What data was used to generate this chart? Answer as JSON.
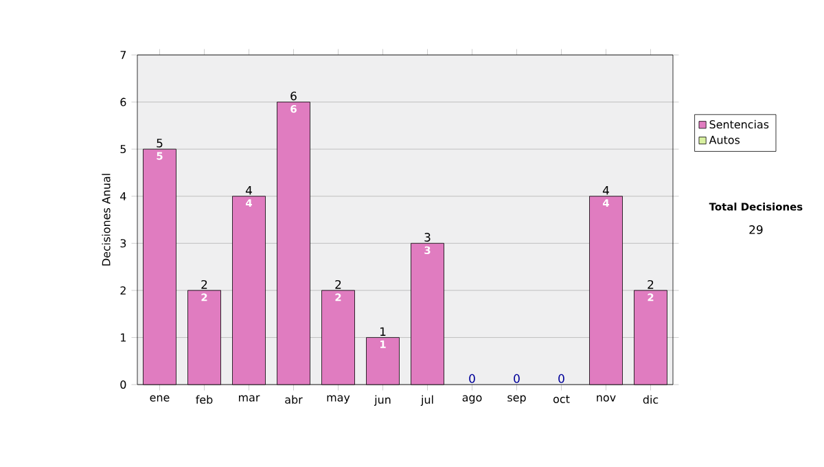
{
  "chart_data": {
    "type": "bar",
    "stacked": true,
    "categories": [
      "ene",
      "feb",
      "mar",
      "abr",
      "may",
      "jun",
      "jul",
      "ago",
      "sep",
      "oct",
      "nov",
      "dic"
    ],
    "ylabel": "Decisiones Anual",
    "series": [
      {
        "name": "Sentencias",
        "color": "#e07cc0",
        "values": [
          5,
          2,
          4,
          6,
          2,
          1,
          3,
          0,
          0,
          0,
          4,
          2
        ],
        "value_labels": [
          "5",
          "2",
          "4",
          "6",
          "2",
          "1",
          "3",
          null,
          null,
          null,
          "4",
          "2"
        ]
      },
      {
        "name": "Autos",
        "color": "#d8f0a0",
        "values": [
          0,
          0,
          0,
          0,
          0,
          0,
          0,
          0,
          0,
          0,
          0,
          0
        ]
      }
    ],
    "totals": [
      "5",
      "2",
      "4",
      "6",
      "2",
      "1",
      "3",
      "0",
      "0",
      "0",
      "4",
      "2"
    ],
    "ylim": [
      0,
      7
    ],
    "yticks": [
      0,
      1,
      2,
      3,
      4,
      5,
      6,
      7
    ],
    "grid": "y",
    "legend": "right",
    "annotations": [
      "Total Decisiones",
      "29"
    ]
  }
}
